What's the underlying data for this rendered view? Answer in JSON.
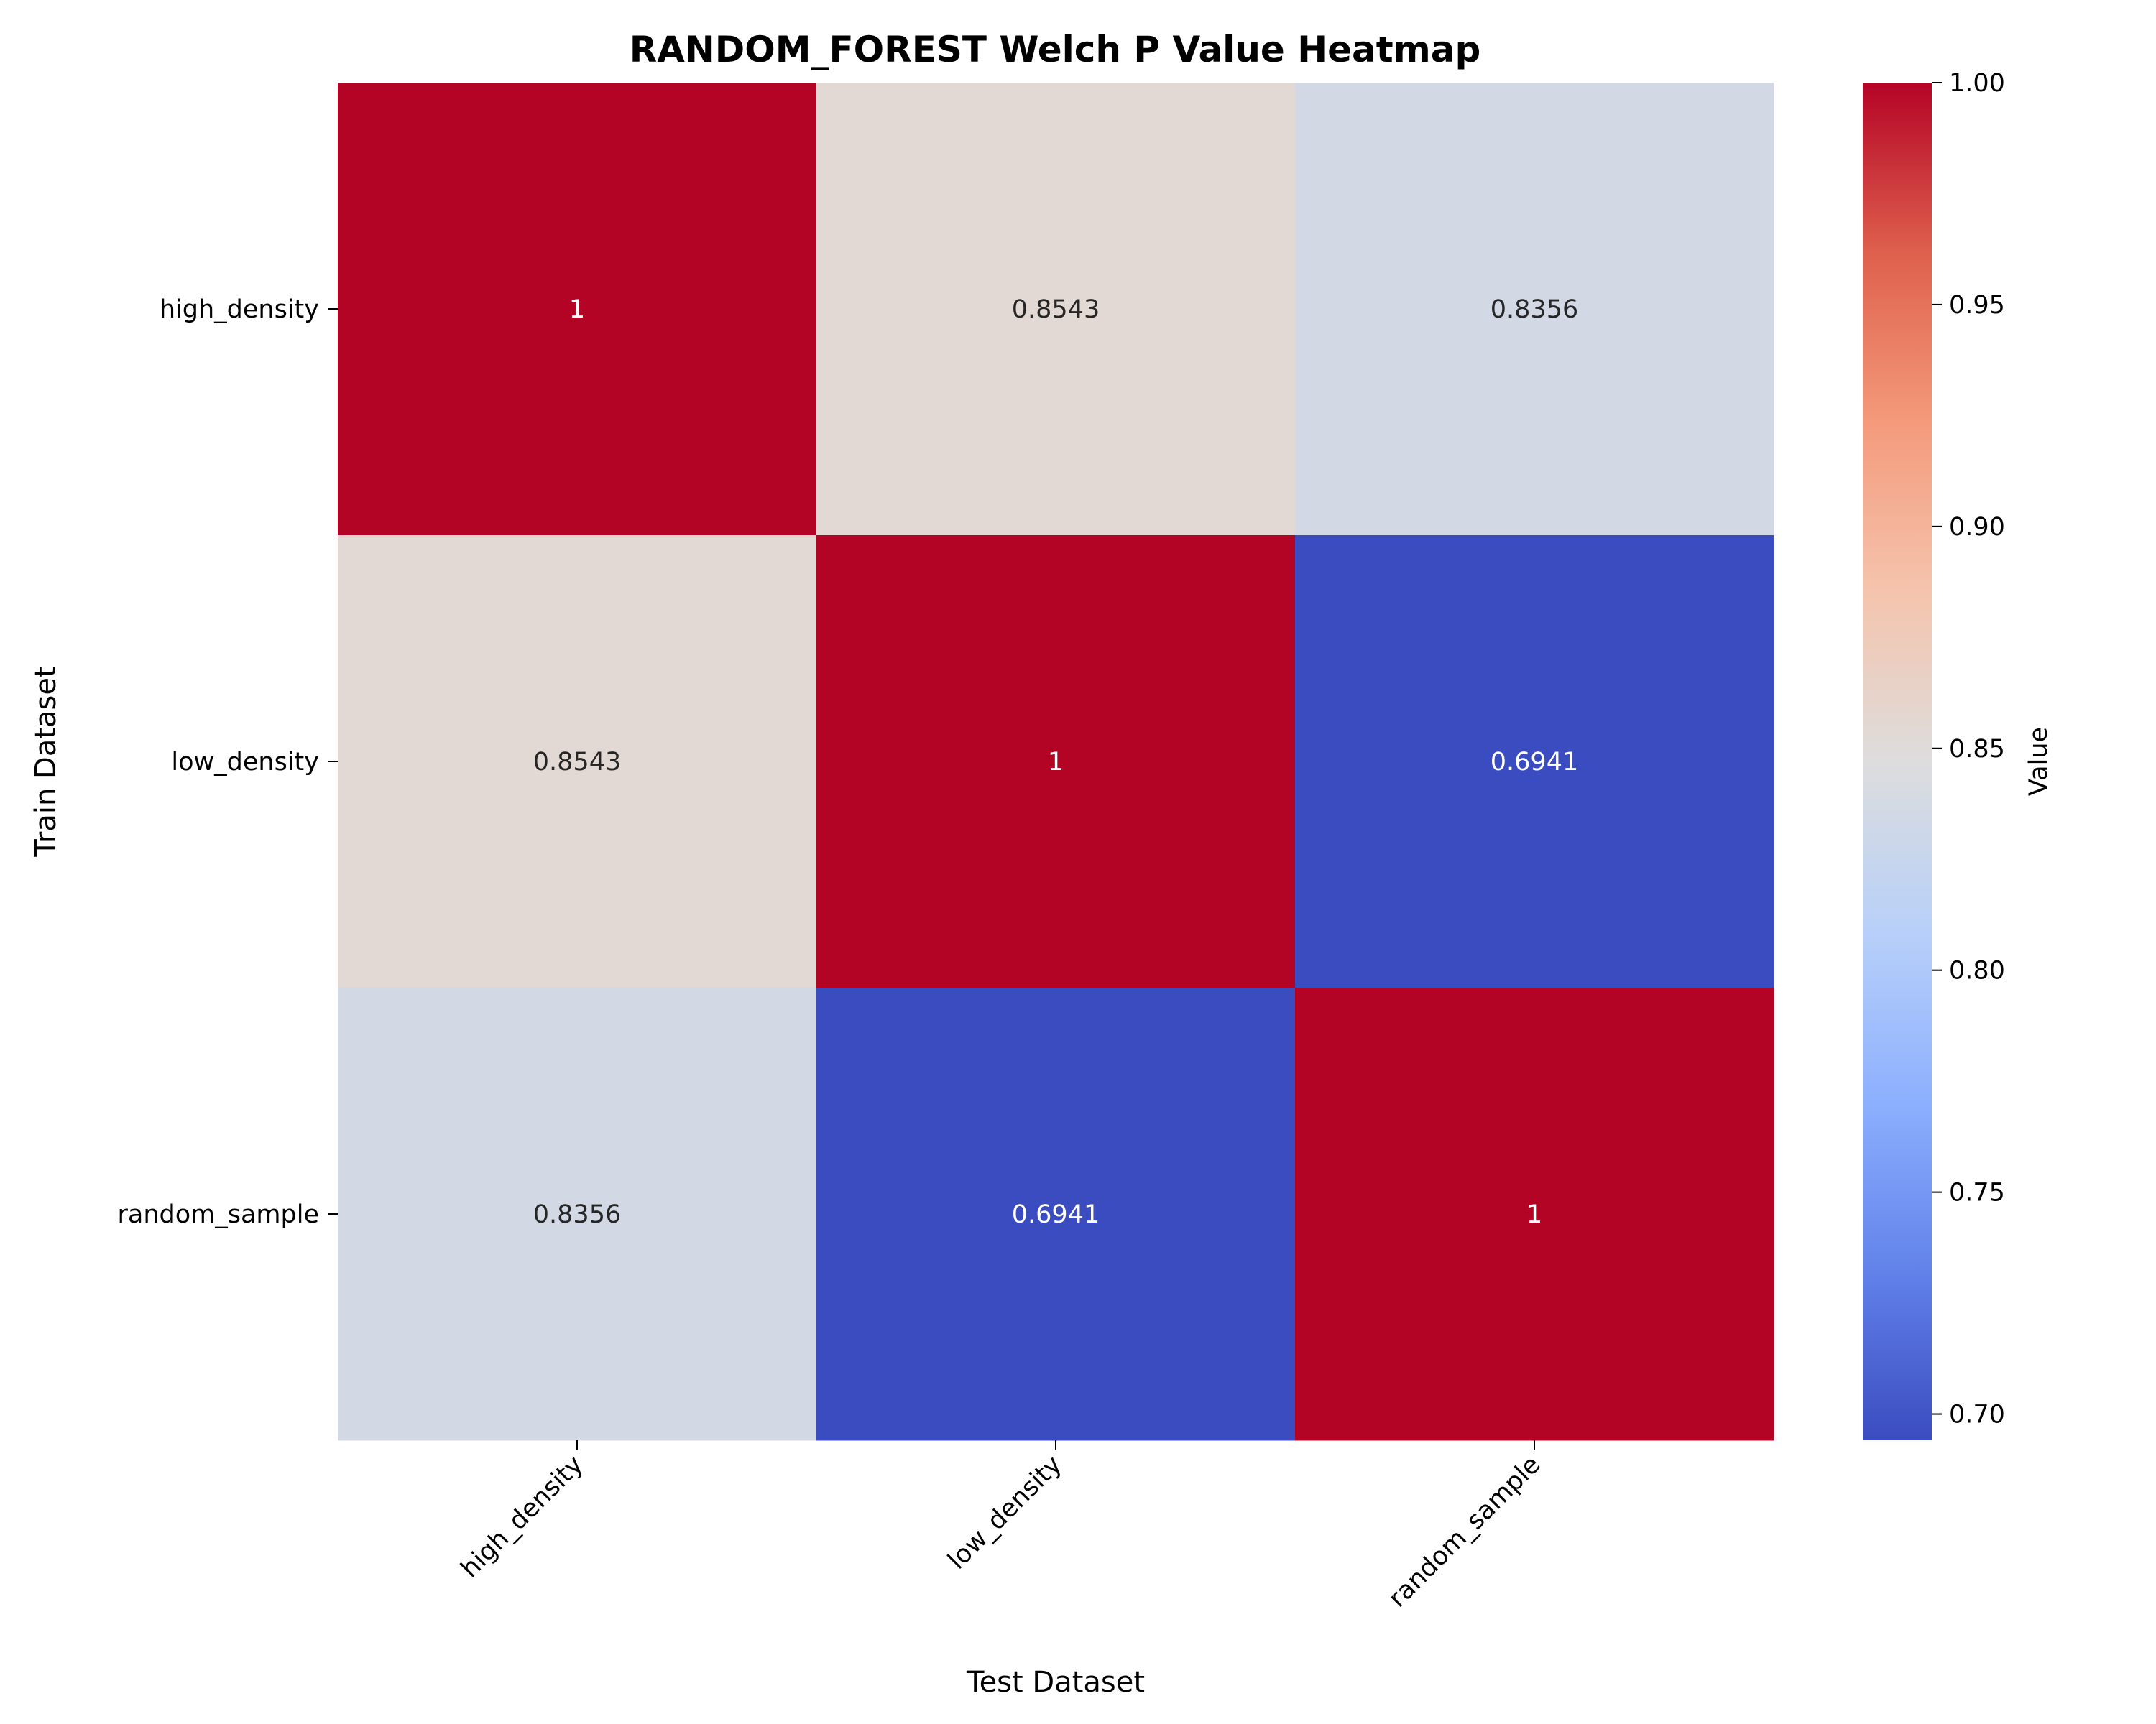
{
  "chart_data": {
    "type": "heatmap",
    "title": "RANDOM_FOREST Welch P Value Heatmap",
    "xlabel": "Test Dataset",
    "ylabel": "Train Dataset",
    "x_categories": [
      "high_density",
      "low_density",
      "random_sample"
    ],
    "y_categories": [
      "high_density",
      "low_density",
      "random_sample"
    ],
    "values": [
      [
        1,
        0.8543,
        0.8356
      ],
      [
        0.8543,
        1,
        0.6941
      ],
      [
        0.8356,
        0.6941,
        1
      ]
    ],
    "cell_labels": [
      [
        "1",
        "0.8543",
        "0.8356"
      ],
      [
        "0.8543",
        "1",
        "0.6941"
      ],
      [
        "0.8356",
        "0.6941",
        "1"
      ]
    ],
    "colorbar": {
      "label": "Value",
      "range": [
        0.6941,
        1.0
      ],
      "ticks": [
        0.7,
        0.75,
        0.8,
        0.85,
        0.9,
        0.95,
        1.0
      ],
      "tick_labels": [
        "0.70",
        "0.75",
        "0.80",
        "0.85",
        "0.90",
        "0.95",
        "1.00"
      ],
      "colormap": "coolwarm"
    },
    "colors": {
      "min": "#3b4cc0",
      "mid": "#dddddd",
      "max": "#b40426"
    }
  }
}
